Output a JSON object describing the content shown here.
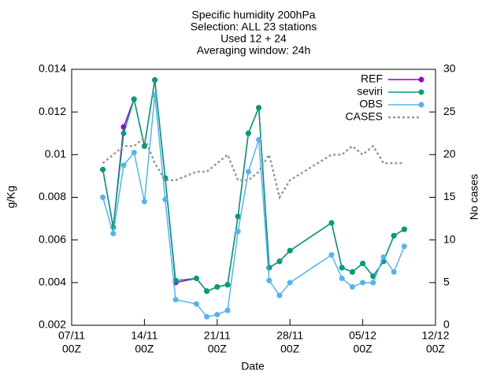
{
  "chart_data": {
    "type": "line",
    "title": [
      "Specific humidity 200hPa",
      "Selection: ALL      23 stations",
      "Used 12 + 24",
      "Averaging window: 24h"
    ],
    "xlabel": "Date",
    "ylabel": "g/Kg",
    "y2label": "No cases",
    "x": [
      "10/11",
      "11/11",
      "12/11",
      "13/11",
      "14/11",
      "15/11",
      "16/11",
      "17/11",
      "19/11",
      "20/11",
      "21/11",
      "22/11",
      "23/11",
      "24/11",
      "25/11",
      "26/11",
      "27/11",
      "28/11",
      "02/12",
      "03/12",
      "04/12",
      "05/12",
      "06/12",
      "07/12",
      "08/12",
      "09/12"
    ],
    "xlim": [
      "07/11",
      "12/12"
    ],
    "xticks": [
      {
        "value": "07/11",
        "label": [
          "07/11",
          "00Z"
        ]
      },
      {
        "value": "14/11",
        "label": [
          "14/11",
          "00Z"
        ]
      },
      {
        "value": "21/11",
        "label": [
          "21/11",
          "00Z"
        ]
      },
      {
        "value": "28/11",
        "label": [
          "28/11",
          "00Z"
        ]
      },
      {
        "value": "05/12",
        "label": [
          "05/12",
          "00Z"
        ]
      },
      {
        "value": "12/12",
        "label": [
          "12/12",
          "00Z"
        ]
      }
    ],
    "ylim": [
      0.002,
      0.014
    ],
    "yticks": [
      0.002,
      0.004,
      0.006,
      0.008,
      0.01,
      0.012,
      0.014
    ],
    "y2lim": [
      0,
      30
    ],
    "y2ticks": [
      0,
      5,
      10,
      15,
      20,
      25,
      30
    ],
    "legend": "top-right",
    "series": [
      {
        "name": "REF",
        "color": "#9400d3",
        "style": "points",
        "values": [
          0.0093,
          0.0066,
          0.0113,
          0.0126,
          0.0104,
          0.0135,
          0.0089,
          0.004,
          0.0042,
          0.0036,
          0.0038,
          0.0039,
          0.0071,
          0.011,
          0.0122,
          0.0047,
          0.005,
          0.0055,
          0.0068,
          0.0047,
          0.0045,
          0.0049,
          0.0043,
          0.005,
          0.0062,
          0.0065
        ]
      },
      {
        "name": "seviri",
        "color": "#009e73",
        "style": "points",
        "values": [
          0.0093,
          0.0066,
          0.011,
          0.0126,
          0.0104,
          0.0135,
          0.0089,
          0.0041,
          0.0042,
          0.0036,
          0.0038,
          0.0039,
          0.0071,
          0.011,
          0.0122,
          0.0047,
          0.005,
          0.0055,
          0.0068,
          0.0047,
          0.0045,
          0.0049,
          0.0043,
          0.005,
          0.0062,
          0.0065
        ]
      },
      {
        "name": "OBS",
        "color": "#56b4e9",
        "style": "points",
        "values": [
          0.008,
          0.0063,
          0.0095,
          0.0101,
          0.0078,
          0.0128,
          0.0079,
          0.0032,
          0.003,
          0.0024,
          0.0025,
          0.0027,
          0.0064,
          0.0092,
          0.0107,
          0.0041,
          0.0034,
          0.004,
          0.0053,
          0.0042,
          0.0038,
          0.004,
          0.004,
          0.0052,
          0.0045,
          0.0057
        ]
      },
      {
        "name": "CASES",
        "color": "#999999",
        "style": "dotted",
        "axis": "y2",
        "values": [
          19,
          20,
          21,
          21,
          22,
          19,
          17,
          17,
          18,
          18,
          19,
          20,
          17,
          17,
          18,
          20,
          15,
          17,
          20,
          20,
          21,
          20,
          21,
          19,
          19,
          19
        ]
      }
    ]
  }
}
